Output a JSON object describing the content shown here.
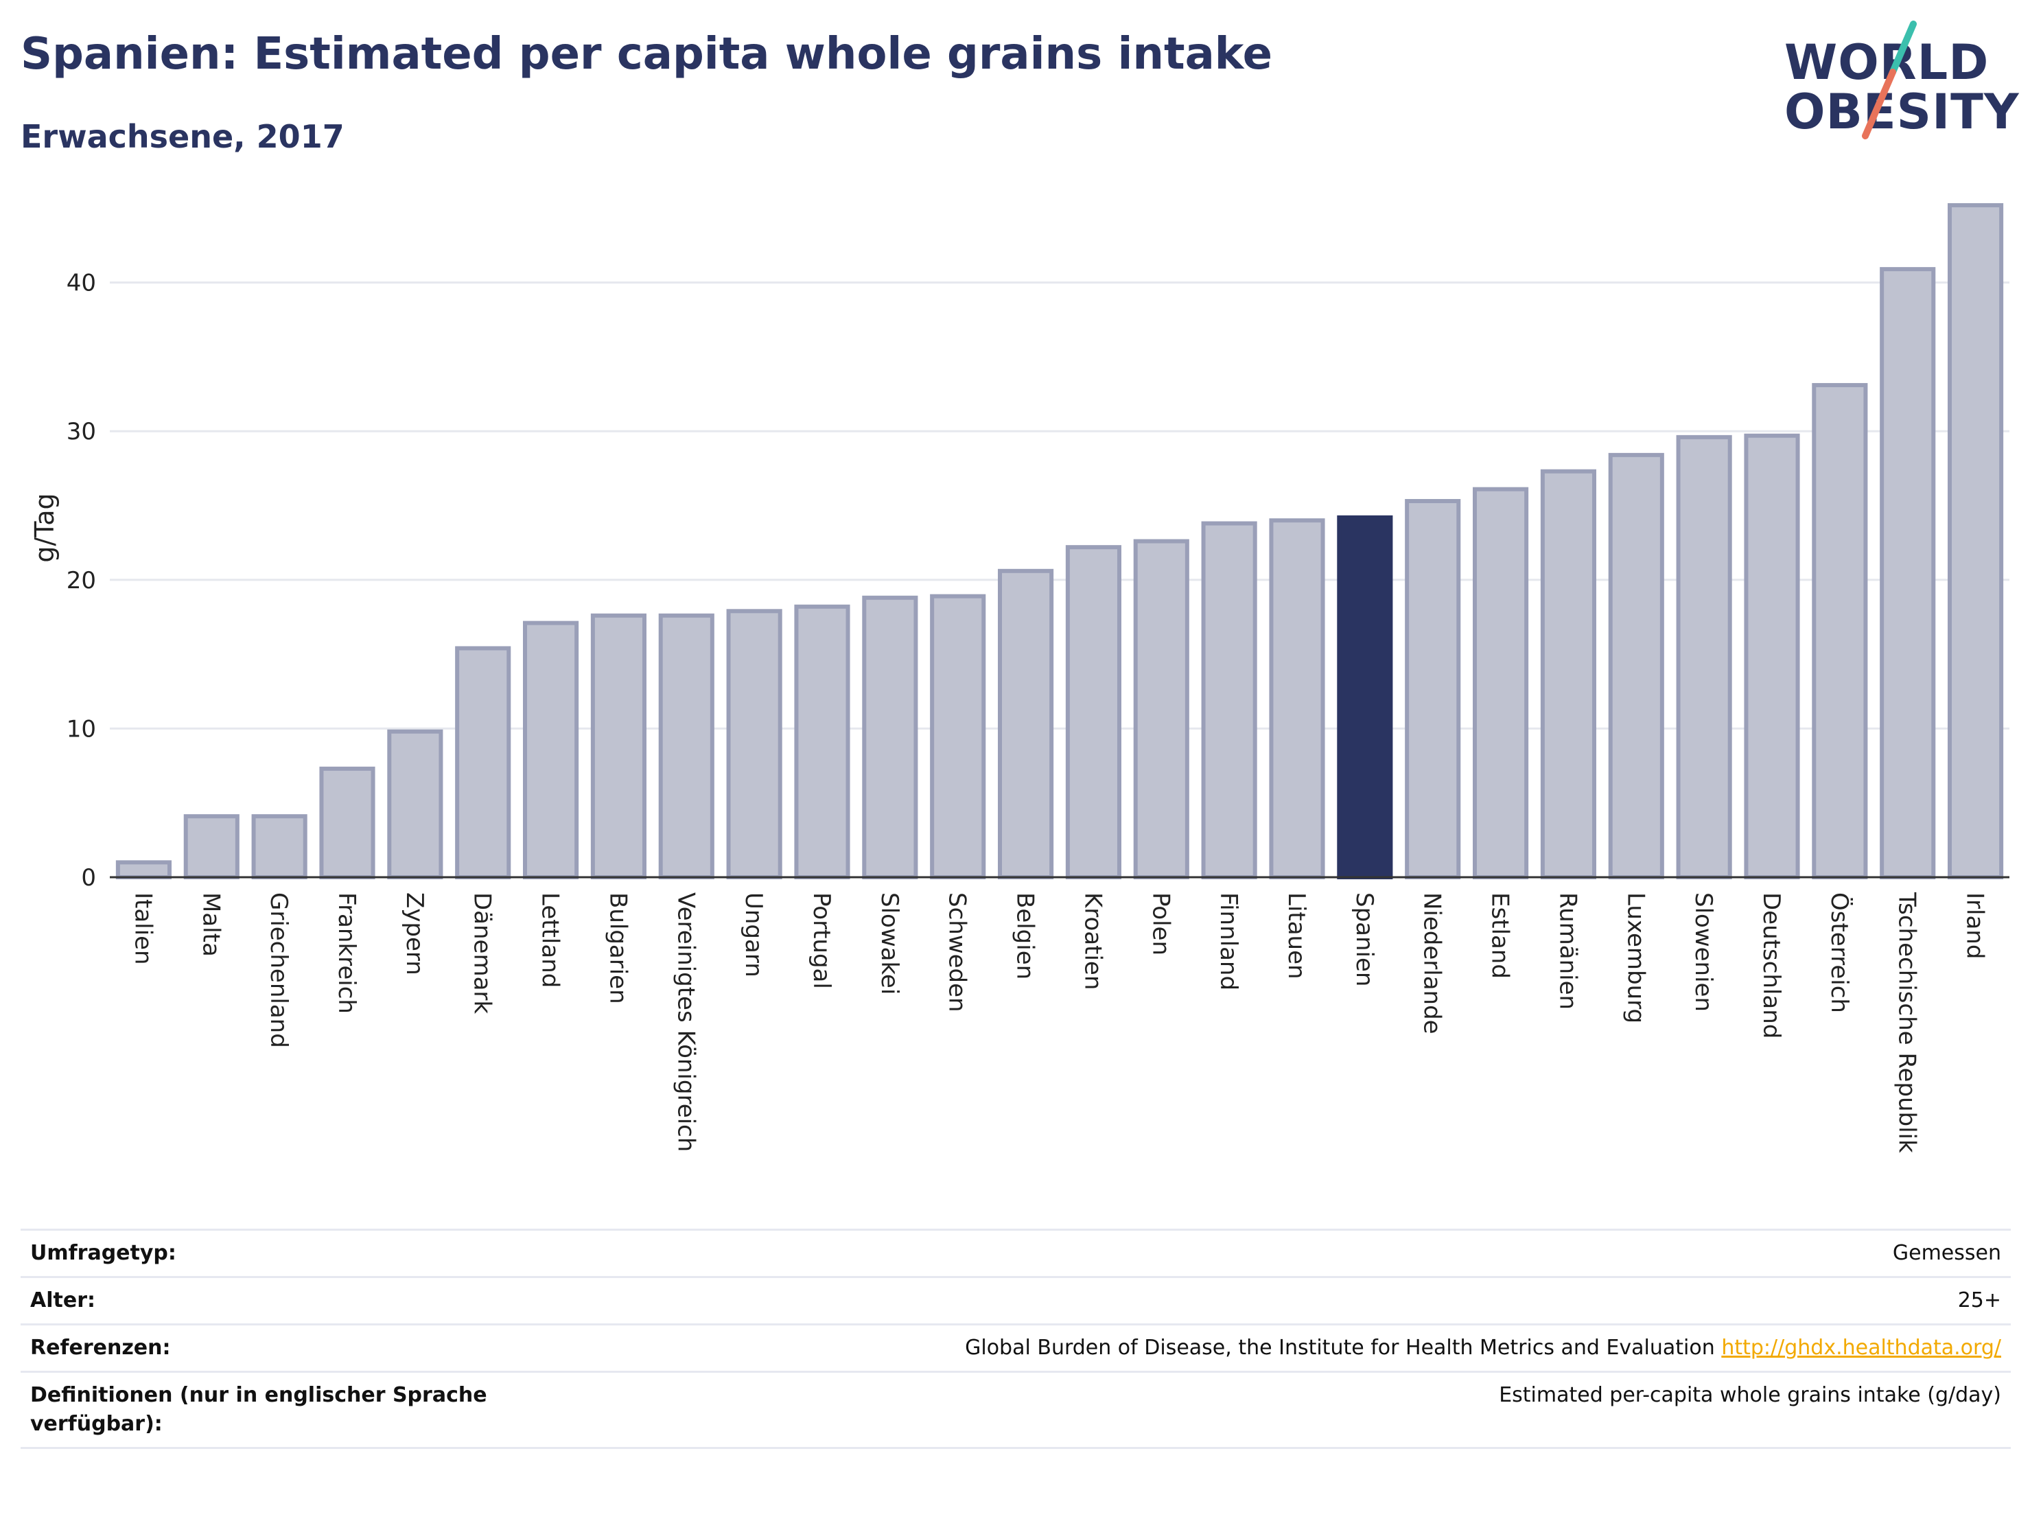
{
  "header": {
    "title": "Spanien: Estimated per capita whole grains intake",
    "subtitle": "Erwachsene, 2017"
  },
  "logo": {
    "line1": "WORLD",
    "line2": "OBESITY",
    "accent_teal": "#3bbfad",
    "accent_coral": "#e8735a"
  },
  "colors": {
    "bar_default": "#bfc2d0",
    "bar_border": "#9a9fb8",
    "bar_highlight": "#2a3461",
    "title": "#2a3461",
    "link": "#f2a900"
  },
  "chart_data": {
    "type": "bar",
    "ylabel": "g/Tag",
    "xlabel": "",
    "ylim": [
      0,
      47
    ],
    "yticks": [
      0,
      10,
      20,
      30,
      40
    ],
    "grid": true,
    "highlight": "Spanien",
    "categories": [
      "Italien",
      "Malta",
      "Griechenland",
      "Frankreich",
      "Zypern",
      "Dänemark",
      "Lettland",
      "Bulgarien",
      "Vereinigtes Königreich",
      "Ungarn",
      "Portugal",
      "Slowakei",
      "Schweden",
      "Belgien",
      "Kroatien",
      "Polen",
      "Finnland",
      "Litauen",
      "Spanien",
      "Niederlande",
      "Estland",
      "Rumänien",
      "Luxemburg",
      "Slowenien",
      "Deutschland",
      "Österreich",
      "Tschechische Republik",
      "Irland"
    ],
    "values": [
      1.0,
      4.1,
      4.1,
      7.3,
      9.8,
      15.4,
      17.1,
      17.6,
      17.6,
      17.9,
      18.2,
      18.8,
      18.9,
      20.6,
      22.2,
      22.6,
      23.8,
      24.0,
      24.2,
      25.3,
      26.1,
      27.3,
      28.4,
      29.6,
      29.7,
      33.1,
      40.9,
      45.2
    ]
  },
  "info": {
    "rows": [
      {
        "label": "Umfragetyp:",
        "value": "Gemessen"
      },
      {
        "label": "Alter:",
        "value": "25+"
      },
      {
        "label": "Referenzen:",
        "value": "Global Burden of Disease, the Institute for Health Metrics and Evaluation",
        "link": "http://ghdx.healthdata.org/"
      },
      {
        "label": "Definitionen (nur in englischer Sprache verfügbar):",
        "value": "Estimated per-capita whole grains intake (g/day)"
      }
    ]
  }
}
